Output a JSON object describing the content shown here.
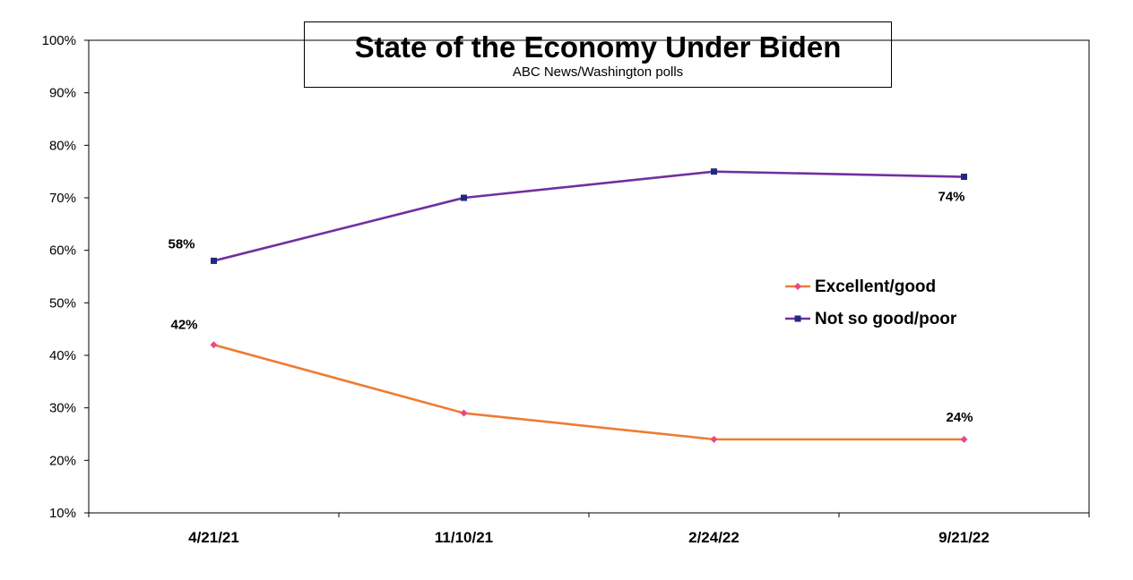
{
  "chart_data": {
    "type": "line",
    "title": "State of the Economy Under Biden",
    "subtitle": "ABC News/Washington  polls",
    "categories": [
      "4/21/21",
      "11/10/21",
      "2/24/22",
      "9/21/22"
    ],
    "ylim": [
      10,
      100
    ],
    "yticks": [
      10,
      20,
      30,
      40,
      50,
      60,
      70,
      80,
      90,
      100
    ],
    "ytick_labels": [
      "10%",
      "20%",
      "30%",
      "40%",
      "50%",
      "60%",
      "70%",
      "80%",
      "90%",
      "100%"
    ],
    "grid": false,
    "legend_position": "right",
    "series": [
      {
        "name": "Excellent/good",
        "values": [
          42,
          29,
          24,
          24
        ],
        "line_color": "#ED7D31",
        "marker_color": "#E8488A",
        "marker": "diamond",
        "data_labels": [
          {
            "index": 0,
            "text": "42%"
          },
          {
            "index": 3,
            "text": "24%"
          }
        ]
      },
      {
        "name": "Not so good/poor",
        "values": [
          58,
          70,
          75,
          74
        ],
        "line_color": "#7030A0",
        "marker_color": "#1F2A80",
        "marker": "square",
        "data_labels": [
          {
            "index": 0,
            "text": "58%"
          },
          {
            "index": 3,
            "text": "74%"
          }
        ]
      }
    ]
  }
}
